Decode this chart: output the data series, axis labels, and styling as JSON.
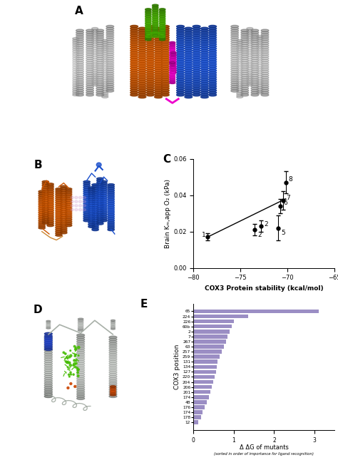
{
  "panel_labels": [
    "A",
    "B",
    "C",
    "D",
    "E"
  ],
  "scatter": {
    "x": [
      -78.5,
      -73.5,
      -72.8,
      -71.0,
      -70.8,
      -70.5,
      -70.2
    ],
    "y": [
      0.017,
      0.021,
      0.023,
      0.022,
      0.034,
      0.037,
      0.047
    ],
    "yerr": [
      0.002,
      0.003,
      0.003,
      0.007,
      0.004,
      0.005,
      0.006
    ],
    "labels": [
      "1",
      "2",
      "2",
      "5",
      "6",
      "7",
      "8"
    ],
    "offsets_x": [
      -6,
      3,
      3,
      3,
      3,
      3,
      3
    ],
    "offsets_y": [
      2,
      -5,
      2,
      -5,
      3,
      3,
      3
    ],
    "xlim": [
      -80,
      -65
    ],
    "ylim": [
      0.0,
      0.06
    ],
    "xlabel": "COX3 Protein stability (kcal/mol)",
    "ylabel": "Brain Kₘ,app O₂ (kPa)",
    "xticks": [
      -80,
      -75,
      -70,
      -65
    ],
    "yticks": [
      0.0,
      0.02,
      0.04,
      0.06
    ],
    "fit_x": [
      -78.5,
      -70.2
    ],
    "fit_y": [
      0.017,
      0.038
    ]
  },
  "bar": {
    "positions": [
      "65",
      "224",
      "226",
      "60b",
      "2",
      "7",
      "267",
      "63",
      "257",
      "259",
      "131",
      "134",
      "127",
      "220",
      "204",
      "206",
      "201",
      "174",
      "48",
      "176",
      "174",
      "178",
      "12"
    ],
    "values": [
      3.1,
      1.35,
      1.0,
      0.95,
      0.9,
      0.85,
      0.8,
      0.75,
      0.7,
      0.65,
      0.6,
      0.58,
      0.55,
      0.52,
      0.48,
      0.45,
      0.42,
      0.38,
      0.32,
      0.28,
      0.22,
      0.18,
      0.12
    ],
    "color": "#9b8ec4",
    "xlabel": "Δ ΔG of mutants",
    "ylabel": "COX3 position",
    "xlim": [
      0,
      3.5
    ],
    "xticks": [
      0,
      1,
      2,
      3
    ],
    "footnote": "(sorted in order of importance for ligand recognition)"
  },
  "colors": {
    "orange": "#cc5500",
    "blue": "#1a4fcc",
    "green": "#44aa00",
    "magenta": "#ee00cc",
    "gray": "#b8b8b8",
    "gray_light": "#d0d0d0"
  }
}
